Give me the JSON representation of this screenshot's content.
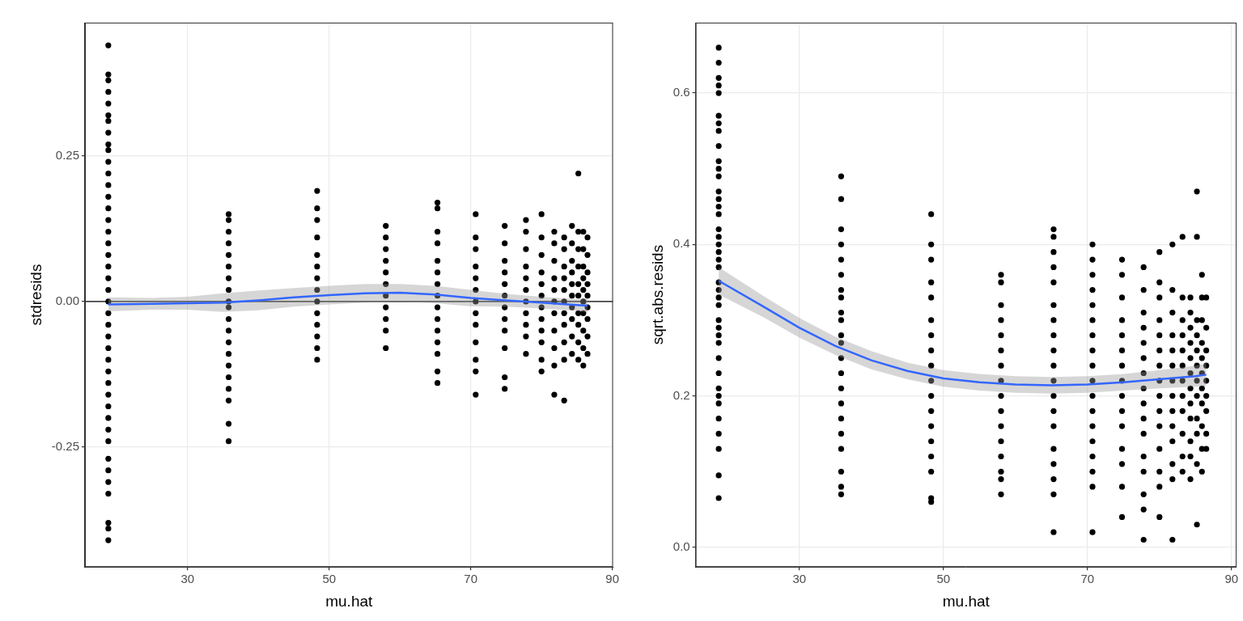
{
  "chart_data": [
    {
      "type": "scatter",
      "x_label": "mu.hat",
      "y_label": "stdresids",
      "color": "#000000",
      "grid": true,
      "xlim": [
        15.5,
        90.1
      ],
      "xticks": [
        30,
        50,
        70,
        90
      ],
      "ylim": [
        -0.456,
        0.479
      ],
      "yticks": [
        -0.25,
        {
          "value": 0,
          "label": "0.00"
        },
        0.25
      ],
      "hline": 0,
      "groups": [
        {
          "x": 18.8,
          "values": [
            0.44,
            0.39,
            0.38,
            0.36,
            0.34,
            0.32,
            0.31,
            0.29,
            0.27,
            0.26,
            0.24,
            0.22,
            0.2,
            0.18,
            0.16,
            0.14,
            0.12,
            0.1,
            0.08,
            0.06,
            0.04,
            0.02,
            0.0,
            -0.02,
            -0.04,
            -0.06,
            -0.08,
            -0.1,
            -0.12,
            -0.14,
            -0.16,
            -0.18,
            -0.2,
            -0.22,
            -0.24,
            -0.27,
            -0.29,
            -0.31,
            -0.33,
            -0.38,
            -0.39,
            -0.41
          ]
        },
        {
          "x": 35.8,
          "values": [
            0.15,
            0.14,
            0.12,
            0.1,
            0.08,
            0.06,
            0.04,
            0.02,
            0.0,
            -0.01,
            -0.03,
            -0.05,
            -0.07,
            -0.09,
            -0.11,
            -0.13,
            -0.15,
            -0.17,
            -0.21,
            -0.24
          ]
        },
        {
          "x": 48.3,
          "values": [
            0.19,
            0.16,
            0.14,
            0.11,
            0.08,
            0.06,
            0.04,
            0.02,
            0.0,
            -0.02,
            -0.04,
            -0.06,
            -0.08,
            -0.1
          ]
        },
        {
          "x": 58.0,
          "values": [
            0.13,
            0.11,
            0.09,
            0.07,
            0.05,
            0.03,
            0.01,
            -0.01,
            -0.03,
            -0.05,
            -0.08
          ]
        },
        {
          "x": 65.3,
          "values": [
            0.17,
            0.16,
            0.12,
            0.1,
            0.07,
            0.05,
            0.03,
            0.01,
            -0.01,
            -0.03,
            -0.05,
            -0.07,
            -0.09,
            -0.12,
            -0.14
          ]
        },
        {
          "x": 70.7,
          "values": [
            0.15,
            0.11,
            0.09,
            0.06,
            0.04,
            0.02,
            0.0,
            -0.02,
            -0.04,
            -0.07,
            -0.1,
            -0.12,
            -0.16
          ]
        },
        {
          "x": 74.8,
          "values": [
            0.13,
            0.1,
            0.07,
            0.05,
            0.03,
            0.01,
            -0.01,
            -0.03,
            -0.05,
            -0.08,
            -0.13,
            -0.15
          ]
        },
        {
          "x": 77.8,
          "values": [
            0.14,
            0.12,
            0.09,
            0.06,
            0.04,
            0.02,
            0.0,
            -0.02,
            -0.04,
            -0.06,
            -0.09
          ]
        },
        {
          "x": 80.0,
          "values": [
            0.15,
            0.11,
            0.08,
            0.05,
            0.03,
            0.01,
            -0.01,
            -0.03,
            -0.05,
            -0.07,
            -0.1,
            -0.12
          ]
        },
        {
          "x": 81.8,
          "values": [
            0.12,
            0.1,
            0.07,
            0.04,
            0.02,
            0.0,
            -0.02,
            -0.05,
            -0.08,
            -0.11,
            -0.16
          ]
        },
        {
          "x": 83.2,
          "values": [
            0.11,
            0.09,
            0.06,
            0.04,
            0.02,
            0.0,
            -0.02,
            -0.04,
            -0.07,
            -0.1,
            -0.17
          ]
        },
        {
          "x": 84.3,
          "values": [
            0.13,
            0.1,
            0.07,
            0.05,
            0.03,
            0.01,
            -0.01,
            -0.03,
            -0.06,
            -0.09
          ]
        },
        {
          "x": 85.2,
          "values": [
            0.22,
            0.12,
            0.09,
            0.06,
            0.03,
            0.01,
            -0.02,
            -0.04,
            -0.07,
            -0.1
          ]
        },
        {
          "x": 85.9,
          "values": [
            0.12,
            0.09,
            0.06,
            0.04,
            0.02,
            0.0,
            -0.02,
            -0.05,
            -0.08,
            -0.11
          ]
        },
        {
          "x": 86.5,
          "values": [
            0.11,
            0.08,
            0.05,
            0.03,
            0.01,
            -0.01,
            -0.03,
            -0.06,
            -0.09
          ]
        }
      ],
      "smooth": {
        "color": "#3366FF",
        "x": [
          18.8,
          25,
          30,
          35,
          40,
          45,
          50,
          55,
          60,
          65,
          70,
          75,
          80,
          85,
          86.5
        ],
        "values": [
          -0.005,
          -0.004,
          -0.003,
          -0.002,
          0.002,
          0.007,
          0.011,
          0.014,
          0.015,
          0.012,
          0.006,
          0.002,
          -0.002,
          -0.006,
          -0.007
        ],
        "lower": [
          -0.017,
          -0.014,
          -0.014,
          -0.018,
          -0.015,
          -0.009,
          -0.005,
          -0.002,
          0.0,
          -0.003,
          -0.008,
          -0.009,
          -0.012,
          -0.016,
          -0.019
        ],
        "upper": [
          0.007,
          0.006,
          0.008,
          0.014,
          0.019,
          0.023,
          0.027,
          0.03,
          0.03,
          0.027,
          0.02,
          0.013,
          0.008,
          0.004,
          0.005
        ]
      }
    },
    {
      "type": "scatter",
      "x_label": "mu.hat",
      "y_label": "sqrt.abs.resids",
      "color": "#000000",
      "grid": true,
      "xlim": [
        15.6,
        90.7
      ],
      "xticks": [
        30,
        50,
        70,
        90
      ],
      "ylim": [
        -0.026,
        0.693
      ],
      "yticks": [
        {
          "value": 0,
          "label": "0.0"
        },
        0.2,
        0.4,
        0.6
      ],
      "groups": [
        {
          "x": 18.8,
          "values": [
            0.66,
            0.64,
            0.62,
            0.61,
            0.6,
            0.57,
            0.56,
            0.55,
            0.53,
            0.51,
            0.5,
            0.49,
            0.47,
            0.46,
            0.45,
            0.44,
            0.42,
            0.41,
            0.4,
            0.39,
            0.38,
            0.37,
            0.35,
            0.34,
            0.33,
            0.32,
            0.3,
            0.29,
            0.28,
            0.27,
            0.25,
            0.23,
            0.21,
            0.2,
            0.19,
            0.17,
            0.15,
            0.13,
            0.095,
            0.065
          ]
        },
        {
          "x": 35.8,
          "values": [
            0.49,
            0.46,
            0.42,
            0.4,
            0.38,
            0.36,
            0.34,
            0.33,
            0.31,
            0.3,
            0.28,
            0.27,
            0.25,
            0.23,
            0.21,
            0.19,
            0.17,
            0.15,
            0.13,
            0.1,
            0.08,
            0.07
          ]
        },
        {
          "x": 48.3,
          "values": [
            0.44,
            0.4,
            0.38,
            0.35,
            0.33,
            0.3,
            0.28,
            0.26,
            0.24,
            0.22,
            0.2,
            0.18,
            0.16,
            0.14,
            0.12,
            0.1,
            0.065,
            0.06
          ]
        },
        {
          "x": 58.0,
          "values": [
            0.36,
            0.35,
            0.32,
            0.3,
            0.28,
            0.26,
            0.24,
            0.22,
            0.2,
            0.18,
            0.16,
            0.14,
            0.12,
            0.1,
            0.09,
            0.07
          ]
        },
        {
          "x": 65.3,
          "values": [
            0.42,
            0.41,
            0.39,
            0.37,
            0.35,
            0.32,
            0.3,
            0.28,
            0.26,
            0.24,
            0.22,
            0.2,
            0.18,
            0.16,
            0.13,
            0.11,
            0.09,
            0.07,
            0.02
          ]
        },
        {
          "x": 70.7,
          "values": [
            0.4,
            0.38,
            0.36,
            0.34,
            0.32,
            0.3,
            0.28,
            0.26,
            0.24,
            0.22,
            0.2,
            0.18,
            0.16,
            0.14,
            0.12,
            0.1,
            0.08,
            0.02
          ]
        },
        {
          "x": 74.8,
          "values": [
            0.38,
            0.36,
            0.33,
            0.3,
            0.28,
            0.26,
            0.24,
            0.22,
            0.2,
            0.18,
            0.16,
            0.13,
            0.11,
            0.08,
            0.04
          ]
        },
        {
          "x": 77.8,
          "values": [
            0.37,
            0.34,
            0.31,
            0.29,
            0.27,
            0.25,
            0.23,
            0.21,
            0.19,
            0.17,
            0.15,
            0.12,
            0.1,
            0.07,
            0.05,
            0.01
          ]
        },
        {
          "x": 80.0,
          "values": [
            0.39,
            0.35,
            0.33,
            0.3,
            0.28,
            0.26,
            0.24,
            0.22,
            0.2,
            0.18,
            0.16,
            0.13,
            0.1,
            0.08,
            0.04
          ]
        },
        {
          "x": 81.8,
          "values": [
            0.4,
            0.34,
            0.31,
            0.28,
            0.26,
            0.24,
            0.22,
            0.2,
            0.18,
            0.16,
            0.14,
            0.11,
            0.09,
            0.01
          ]
        },
        {
          "x": 83.2,
          "values": [
            0.41,
            0.33,
            0.3,
            0.28,
            0.26,
            0.24,
            0.22,
            0.2,
            0.18,
            0.15,
            0.12,
            0.1
          ]
        },
        {
          "x": 84.3,
          "values": [
            0.33,
            0.31,
            0.29,
            0.27,
            0.25,
            0.23,
            0.21,
            0.19,
            0.17,
            0.14,
            0.12,
            0.09
          ]
        },
        {
          "x": 85.2,
          "values": [
            0.47,
            0.41,
            0.3,
            0.28,
            0.26,
            0.24,
            0.22,
            0.2,
            0.17,
            0.15,
            0.11,
            0.03
          ]
        },
        {
          "x": 85.9,
          "values": [
            0.36,
            0.33,
            0.3,
            0.27,
            0.25,
            0.23,
            0.21,
            0.19,
            0.16,
            0.13,
            0.1
          ]
        },
        {
          "x": 86.5,
          "values": [
            0.33,
            0.29,
            0.26,
            0.24,
            0.22,
            0.2,
            0.18,
            0.15,
            0.13
          ]
        }
      ],
      "smooth": {
        "color": "#3366FF",
        "x": [
          18.8,
          25,
          30,
          35,
          40,
          45,
          50,
          55,
          60,
          65,
          70,
          75,
          80,
          85,
          86.5
        ],
        "values": [
          0.352,
          0.318,
          0.29,
          0.266,
          0.247,
          0.233,
          0.223,
          0.218,
          0.215,
          0.214,
          0.215,
          0.218,
          0.222,
          0.226,
          0.228
        ],
        "lower": [
          0.334,
          0.304,
          0.277,
          0.254,
          0.235,
          0.222,
          0.212,
          0.207,
          0.204,
          0.203,
          0.204,
          0.207,
          0.21,
          0.212,
          0.213
        ],
        "upper": [
          0.37,
          0.332,
          0.303,
          0.278,
          0.259,
          0.244,
          0.234,
          0.229,
          0.226,
          0.225,
          0.226,
          0.229,
          0.234,
          0.24,
          0.243
        ]
      }
    }
  ]
}
